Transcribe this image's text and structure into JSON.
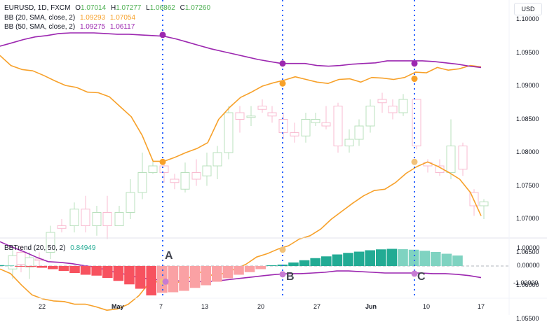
{
  "header": {
    "symbol": "EURUSD, 1D, FXCM",
    "ohlc": [
      {
        "key": "O",
        "value": "1.07014"
      },
      {
        "key": "H",
        "value": "1.07277"
      },
      {
        "key": "L",
        "value": "1.06862"
      },
      {
        "key": "C",
        "value": "1.07260"
      }
    ],
    "bb20": {
      "label": "BB (20, SMA, close, 2)",
      "upper": "1.09293",
      "lower": "1.07054"
    },
    "bb50": {
      "label": "BB (50, SMA, close, 2)",
      "upper": "1.09275",
      "lower": "1.06117"
    },
    "currency": "USD"
  },
  "indicator": {
    "label": "BBTrend (20, 50, 2)",
    "value": "0.84949"
  },
  "markers": [
    "A",
    "B",
    "C"
  ],
  "colors": {
    "bb20": "#f7a12a",
    "bb50": "#9c27b0",
    "up_candle": "#e8f5e9",
    "down_candle": "#fce4ec",
    "up_candle_border": "#b9e0bd",
    "down_candle_border": "#f8bbd0",
    "hist_neg_strong": "#f7525f",
    "hist_neg_weak": "#faa1a4",
    "hist_pos_strong": "#22ab94",
    "hist_pos_weak": "#7fd3c1",
    "vline": "#2962ff",
    "ohlc_value": "#4caf50",
    "indicator_value": "#22ab94"
  },
  "chart_data": [
    {
      "type": "candlestick+line",
      "title": "EURUSD, 1D, FXCM",
      "ylabel": "USD",
      "yticks": [
        "1.10000",
        "1.09500",
        "1.09000",
        "1.08500",
        "1.08000",
        "1.07500",
        "1.07000",
        "1.06500",
        "1.06000",
        "1.05500"
      ],
      "ylim": [
        1.0515,
        1.1025
      ],
      "xticks": [
        "22",
        "May",
        "7",
        "13",
        "20",
        "27",
        "Jun",
        "10",
        "17"
      ],
      "series": [
        {
          "name": "BB20 upper",
          "values": [
            1.0946,
            1.0931,
            1.0925,
            1.0923,
            1.0916,
            1.0908,
            1.0901,
            1.0898,
            1.0891,
            1.089,
            1.0884,
            1.0869,
            1.0854,
            1.0826,
            1.0787,
            1.0787,
            1.0793,
            1.08,
            1.0806,
            1.0815,
            1.085,
            1.0868,
            1.0883,
            1.0891,
            1.09,
            1.0905,
            1.0909,
            1.0914,
            1.091,
            1.0906,
            1.0904,
            1.091,
            1.0911,
            1.0906,
            1.0913,
            1.0912,
            1.091,
            1.0913,
            1.0921,
            1.092,
            1.0928,
            1.0924,
            1.0926,
            1.0931,
            1.0929
          ]
        },
        {
          "name": "BB20 lower",
          "values": [
            1.0625,
            1.0618,
            1.0601,
            1.0586,
            1.058,
            1.0577,
            1.0576,
            1.0572,
            1.0572,
            1.0568,
            1.0563,
            1.0565,
            1.0572,
            1.0585,
            1.0605,
            1.0606,
            1.0601,
            1.0607,
            1.0614,
            1.0622,
            1.0614,
            1.0619,
            1.0625,
            1.0632,
            1.0643,
            1.0648,
            1.0655,
            1.066,
            1.067,
            1.0675,
            1.0685,
            1.07,
            1.0712,
            1.0724,
            1.0735,
            1.0743,
            1.0745,
            1.0755,
            1.0769,
            1.0779,
            1.0786,
            1.0779,
            1.077,
            1.076,
            1.074,
            1.0705
          ]
        },
        {
          "name": "BB50 upper",
          "values": [
            1.096,
            1.0965,
            1.097,
            1.0974,
            1.0976,
            1.0979,
            1.098,
            1.098,
            1.098,
            1.0979,
            1.0978,
            1.0978,
            1.0977,
            1.0976,
            1.0975,
            1.0971,
            1.0966,
            1.0961,
            1.0956,
            1.0952,
            1.0948,
            1.0944,
            1.094,
            1.0937,
            1.0934,
            1.0934,
            1.0934,
            1.0931,
            1.093,
            1.0931,
            1.0933,
            1.0934,
            1.0935,
            1.0938,
            1.0938,
            1.0938,
            1.0938,
            1.0937,
            1.0935,
            1.0933,
            1.093,
            1.0928
          ]
        },
        {
          "name": "BB50 lower",
          "values": [
            1.0666,
            1.0658,
            1.0651,
            1.0643,
            1.0636,
            1.0635,
            1.0633,
            1.063,
            1.0628,
            1.0622,
            1.0619,
            1.0614,
            1.0611,
            1.0609,
            1.0608,
            1.0607,
            1.0606,
            1.0606,
            1.0607,
            1.0609,
            1.0611,
            1.0613,
            1.0615,
            1.0617,
            1.0618,
            1.0618,
            1.0619,
            1.062,
            1.0622,
            1.0622,
            1.0621,
            1.062,
            1.0619,
            1.0619,
            1.0619,
            1.0619,
            1.0618,
            1.0618,
            1.0617,
            1.0615,
            1.0612
          ]
        }
      ]
    },
    {
      "type": "bar",
      "title": "BBTrend (20, 50, 2)",
      "yticks": [
        "1.00000",
        "0.00000",
        "-1.00000"
      ],
      "ylim": [
        -1.6,
        1.3
      ],
      "values": [
        0.05,
        0.0,
        -0.02,
        -0.05,
        -0.1,
        -0.18,
        -0.28,
        -0.4,
        -0.5,
        -0.55,
        -0.68,
        -0.85,
        -1.05,
        -1.3,
        -1.68,
        -1.53,
        -1.5,
        -1.42,
        -1.25,
        -1.1,
        -0.9,
        -0.7,
        -0.5,
        -0.35,
        -0.18,
        0.03,
        0.08,
        0.2,
        0.33,
        0.45,
        0.55,
        0.66,
        0.75,
        0.82,
        0.9,
        0.95,
        0.98,
        0.96,
        0.93,
        0.87,
        0.8,
        0.7,
        0.6
      ]
    }
  ]
}
